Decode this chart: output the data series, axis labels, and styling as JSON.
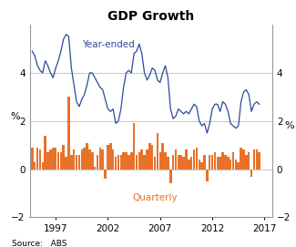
{
  "title": "GDP Growth",
  "ylabel_left": "%",
  "ylabel_right": "%",
  "source": "Source:   ABS",
  "ylim": [
    -2,
    6
  ],
  "yticks": [
    -2,
    0,
    2,
    4
  ],
  "line_color": "#2a4a9a",
  "bar_color": "#e8722a",
  "line_label": "Year-ended",
  "bar_label": "Quarterly",
  "background_color": "#ffffff",
  "grid_color": "#b0b0b0",
  "quarterly_data": [
    0.9,
    0.3,
    0.9,
    0.8,
    0.3,
    1.4,
    0.7,
    0.8,
    0.9,
    0.9,
    0.7,
    0.7,
    1.0,
    0.5,
    3.0,
    0.6,
    0.8,
    0.6,
    0.6,
    0.8,
    0.9,
    1.1,
    0.8,
    0.7,
    0.1,
    0.6,
    0.9,
    0.8,
    -0.4,
    1.0,
    1.1,
    0.8,
    0.5,
    0.6,
    0.6,
    0.7,
    0.7,
    0.6,
    0.7,
    1.9,
    0.6,
    0.7,
    0.8,
    0.6,
    0.8,
    1.1,
    1.0,
    0.5,
    1.5,
    0.7,
    1.1,
    0.7,
    0.5,
    -0.6,
    0.6,
    0.8,
    0.6,
    0.6,
    0.5,
    0.8,
    0.4,
    0.5,
    0.8,
    0.9,
    0.4,
    0.3,
    0.6,
    -0.5,
    0.6,
    0.6,
    0.7,
    0.5,
    0.5,
    0.7,
    0.6,
    0.5,
    0.4,
    0.7,
    0.4,
    0.3,
    0.9,
    0.8,
    0.6,
    0.7,
    -0.3,
    0.8,
    0.8,
    0.7
  ],
  "year_ended_data": [
    4.9,
    4.7,
    4.3,
    4.1,
    4.0,
    4.5,
    4.3,
    4.0,
    3.8,
    4.2,
    4.5,
    4.9,
    5.4,
    5.6,
    5.5,
    4.2,
    3.5,
    2.8,
    2.6,
    2.9,
    3.1,
    3.5,
    4.0,
    4.0,
    3.8,
    3.6,
    3.4,
    3.3,
    2.9,
    2.5,
    2.4,
    2.5,
    1.9,
    2.0,
    2.5,
    3.4,
    4.0,
    4.1,
    4.0,
    4.8,
    4.9,
    5.2,
    4.8,
    4.0,
    3.7,
    3.9,
    4.2,
    4.1,
    3.7,
    3.6,
    4.0,
    4.3,
    3.8,
    2.5,
    2.1,
    2.2,
    2.5,
    2.4,
    2.3,
    2.4,
    2.3,
    2.5,
    2.7,
    2.6,
    2.0,
    1.8,
    1.9,
    1.5,
    1.9,
    2.5,
    2.7,
    2.7,
    2.4,
    2.8,
    2.7,
    2.4,
    1.9,
    1.8,
    1.7,
    1.8,
    2.8,
    3.2,
    3.3,
    3.1,
    2.4,
    2.7,
    2.8,
    2.7
  ],
  "start_year": 1994.75,
  "xmin": 1994.5,
  "xmax": 2017.75,
  "x_tick_years": [
    1997,
    2002,
    2007,
    2012,
    2017
  ]
}
